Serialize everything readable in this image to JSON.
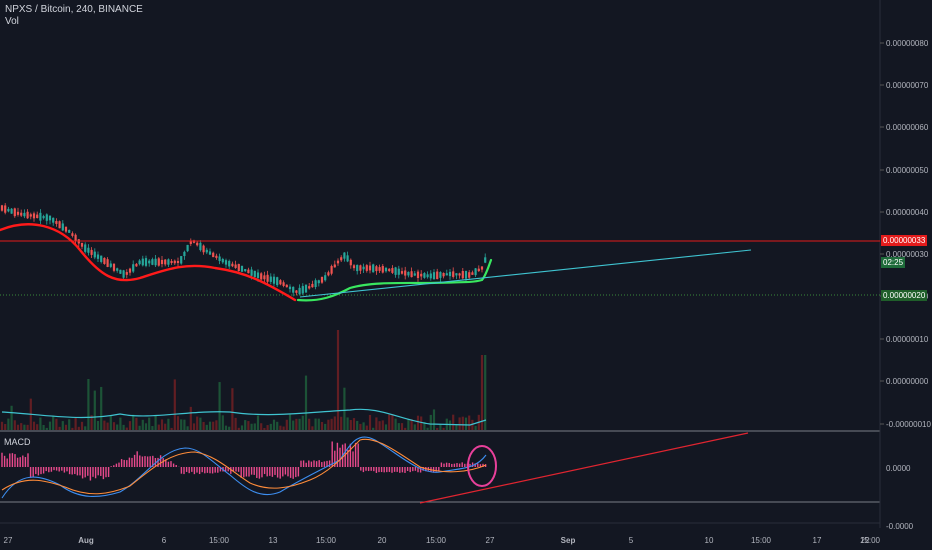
{
  "header": {
    "symbol_line": "NPXS / Bitcoin, 240, BINANCE",
    "volume_label": "Vol"
  },
  "macd_label": "MACD",
  "colors": {
    "background": "#131722",
    "up_candle": "#26a69a",
    "down_candle": "#ef5350",
    "red_curve": "#ff1a1a",
    "green_curve": "#39e75f",
    "trend_line": "#3fc4d1",
    "macd_hist": "#e84a8c",
    "macd_circle": "#e8409a",
    "price_tag": "#e31b1b",
    "support_tag": "#1f5e2a"
  },
  "price_axis": {
    "ticks": [
      "0.00000080",
      "0.00000070",
      "0.00000060",
      "0.00000050",
      "0.00000040",
      "0.00000030",
      "0.00000020",
      "0.00000010",
      "0.00000000",
      "-0.00000010"
    ]
  },
  "tags": {
    "price": "0.00000033",
    "countdown": "02:25",
    "support": "0.00000020",
    "macd_zero": "0.0000",
    "macd_bottom": "-0.0000"
  },
  "time_axis": {
    "labels": [
      "27",
      "Aug",
      "6",
      "15:00",
      "13",
      "15:00",
      "20",
      "15:00",
      "27",
      "Sep",
      "5",
      "10",
      "15:00",
      "17",
      "22",
      "15:00"
    ]
  },
  "chart_data": {
    "type": "candlestick",
    "series_price_approx": [
      4.2e-07,
      4.1e-07,
      4.1e-07,
      4e-07,
      3.9e-07,
      3.6e-07,
      3e-07,
      2.9e-07,
      2.7e-07,
      2.6e-07,
      2.7e-07,
      2.8e-07,
      2.9e-07,
      3e-07,
      2.8e-07,
      2.7e-07,
      2.6e-07,
      2.5e-07,
      2.3e-07,
      2.2e-07,
      1.9e-07,
      2e-07,
      2.1e-07,
      2.3e-07,
      2.6e-07,
      2.8e-07,
      2.9e-07,
      2.7e-07,
      2.6e-07,
      2.5e-07,
      2.4e-07,
      2.5e-07,
      2.6e-07,
      2.7e-07,
      3e-07
    ],
    "resistance_level": 3.3e-07,
    "support_level": 2e-07,
    "ylim": [
      -1.2e-07,
      8.5e-07
    ]
  }
}
